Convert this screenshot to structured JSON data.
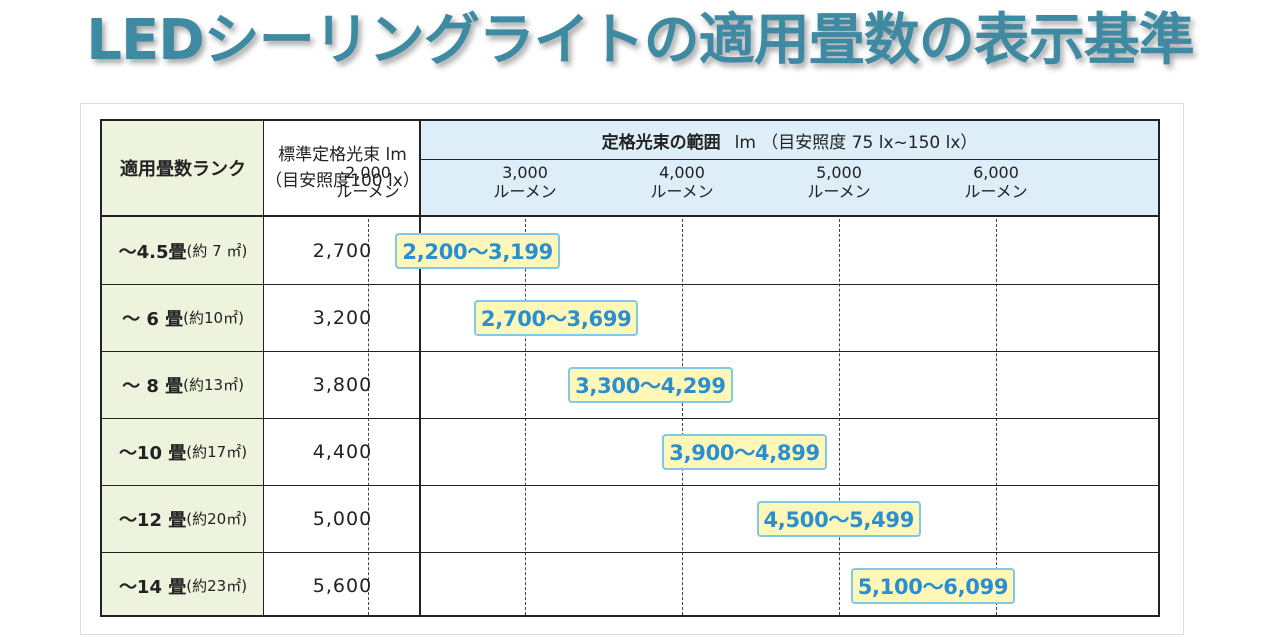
{
  "title": "LEDシーリングライトの適用畳数の表示基準",
  "header": {
    "rank": "適用畳数ランク",
    "standard_line1": "標準定格光束 lm",
    "standard_line2": "（目安照度100 lx）",
    "range_bold": "定格光束の範囲",
    "range_rest": "lm （目安照度 75 lx~150 lx）",
    "ticks": [
      {
        "value": "2,000",
        "unit": "ルーメン"
      },
      {
        "value": "3,000",
        "unit": "ルーメン"
      },
      {
        "value": "4,000",
        "unit": "ルーメン"
      },
      {
        "value": "5,000",
        "unit": "ルーメン"
      },
      {
        "value": "6,000",
        "unit": "ルーメン"
      }
    ]
  },
  "rows": [
    {
      "rank_bold": "～4.5畳",
      "rank_sub": "(約 7 ㎡)",
      "standard": "2,700",
      "range": "2,200～3,199"
    },
    {
      "rank_bold": "～  6 畳",
      "rank_sub": "(約10㎡)",
      "standard": "3,200",
      "range": "2,700～3,699"
    },
    {
      "rank_bold": "～  8 畳",
      "rank_sub": "(約13㎡)",
      "standard": "3,800",
      "range": "3,300～4,299"
    },
    {
      "rank_bold": "～10 畳",
      "rank_sub": "(約17㎡)",
      "standard": "4,400",
      "range": "3,900～4,899"
    },
    {
      "rank_bold": "～12 畳",
      "rank_sub": "(約20㎡)",
      "standard": "5,000",
      "range": "4,500～5,499"
    },
    {
      "rank_bold": "～14 畳",
      "rank_sub": "(約23㎡)",
      "standard": "5,600",
      "range": "5,100～6,099"
    }
  ],
  "colors": {
    "title": "#3f8aa3",
    "rank_column_bg": "#eef3de",
    "header_bg": "#ddeef8",
    "range_box_bg": "#fef7b8",
    "range_box_border": "#7fc8e8",
    "range_text": "#2a8fd0"
  }
}
